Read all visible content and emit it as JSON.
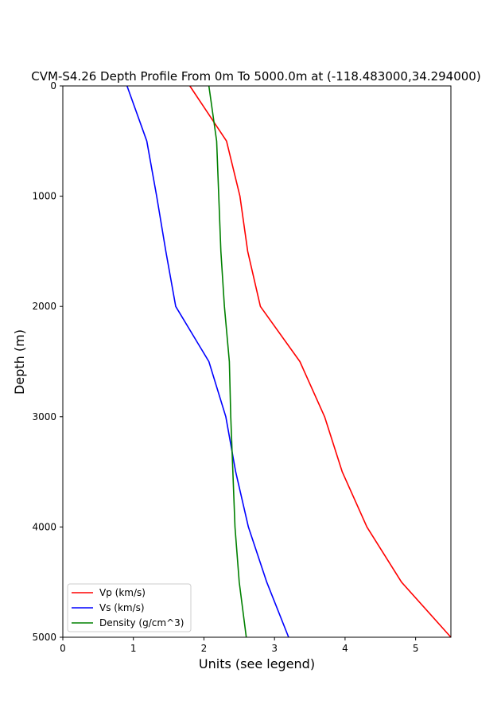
{
  "chart_data": {
    "type": "line",
    "title": "CVM-S4.26 Depth Profile From 0m To 5000.0m at (-118.483000,34.294000)",
    "xlabel": "Units (see legend)",
    "ylabel": "Depth (m)",
    "xlim": [
      0,
      5.5
    ],
    "ylim": [
      0,
      5000
    ],
    "y_inverted": true,
    "x_ticks": [
      "0",
      "1",
      "2",
      "3",
      "4",
      "5"
    ],
    "y_ticks": [
      "0",
      "1000",
      "2000",
      "3000",
      "4000",
      "5000"
    ],
    "grid": false,
    "legend_position": "lower-left",
    "series": [
      {
        "name": "Vp (km/s)",
        "color": "#ff0000",
        "points": [
          [
            1.8,
            0
          ],
          [
            2.32,
            500
          ],
          [
            2.51,
            1000
          ],
          [
            2.62,
            1500
          ],
          [
            2.8,
            2000
          ],
          [
            3.36,
            2500
          ],
          [
            3.71,
            3000
          ],
          [
            3.96,
            3500
          ],
          [
            4.31,
            4000
          ],
          [
            4.8,
            4500
          ],
          [
            5.5,
            5000
          ]
        ]
      },
      {
        "name": "Vs (km/s)",
        "color": "#0000ff",
        "points": [
          [
            0.91,
            0
          ],
          [
            1.19,
            500
          ],
          [
            1.33,
            1000
          ],
          [
            1.46,
            1500
          ],
          [
            1.6,
            2000
          ],
          [
            2.07,
            2500
          ],
          [
            2.31,
            3000
          ],
          [
            2.45,
            3500
          ],
          [
            2.63,
            4000
          ],
          [
            2.89,
            4500
          ],
          [
            3.2,
            5000
          ]
        ]
      },
      {
        "name": "Density (g/cm^3)",
        "color": "#008000",
        "points": [
          [
            2.07,
            0
          ],
          [
            2.18,
            500
          ],
          [
            2.21,
            1000
          ],
          [
            2.24,
            1500
          ],
          [
            2.29,
            2000
          ],
          [
            2.36,
            2500
          ],
          [
            2.38,
            3000
          ],
          [
            2.41,
            3500
          ],
          [
            2.44,
            4000
          ],
          [
            2.5,
            4500
          ],
          [
            2.6,
            5000
          ]
        ]
      }
    ]
  }
}
